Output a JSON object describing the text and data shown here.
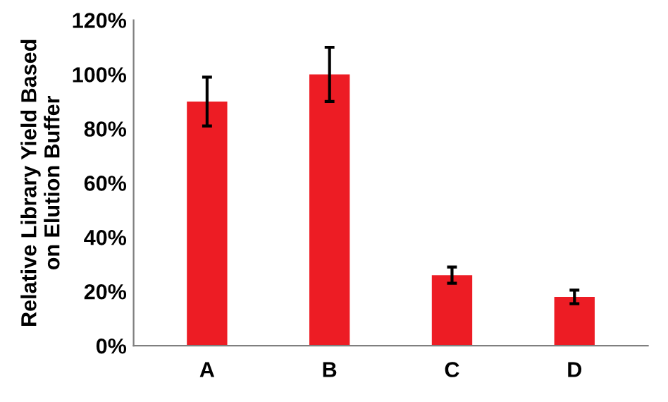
{
  "chart_data": {
    "type": "bar",
    "ylabel": "Relative Library Yield Based\non Elution Buffer",
    "categories": [
      "A",
      "B",
      "C",
      "D"
    ],
    "values": [
      90,
      100,
      26,
      18
    ],
    "errors": [
      9,
      10,
      3,
      2.5
    ],
    "color": "#ed1c24",
    "ylim": [
      0,
      120
    ],
    "yticks": [
      {
        "value": 0,
        "label": "0%"
      },
      {
        "value": 20,
        "label": "20%"
      },
      {
        "value": 40,
        "label": "40%"
      },
      {
        "value": 60,
        "label": "60%"
      },
      {
        "value": 80,
        "label": "80%"
      },
      {
        "value": 100,
        "label": "100%"
      },
      {
        "value": 120,
        "label": "120%"
      }
    ],
    "grid": false,
    "legend": false
  }
}
